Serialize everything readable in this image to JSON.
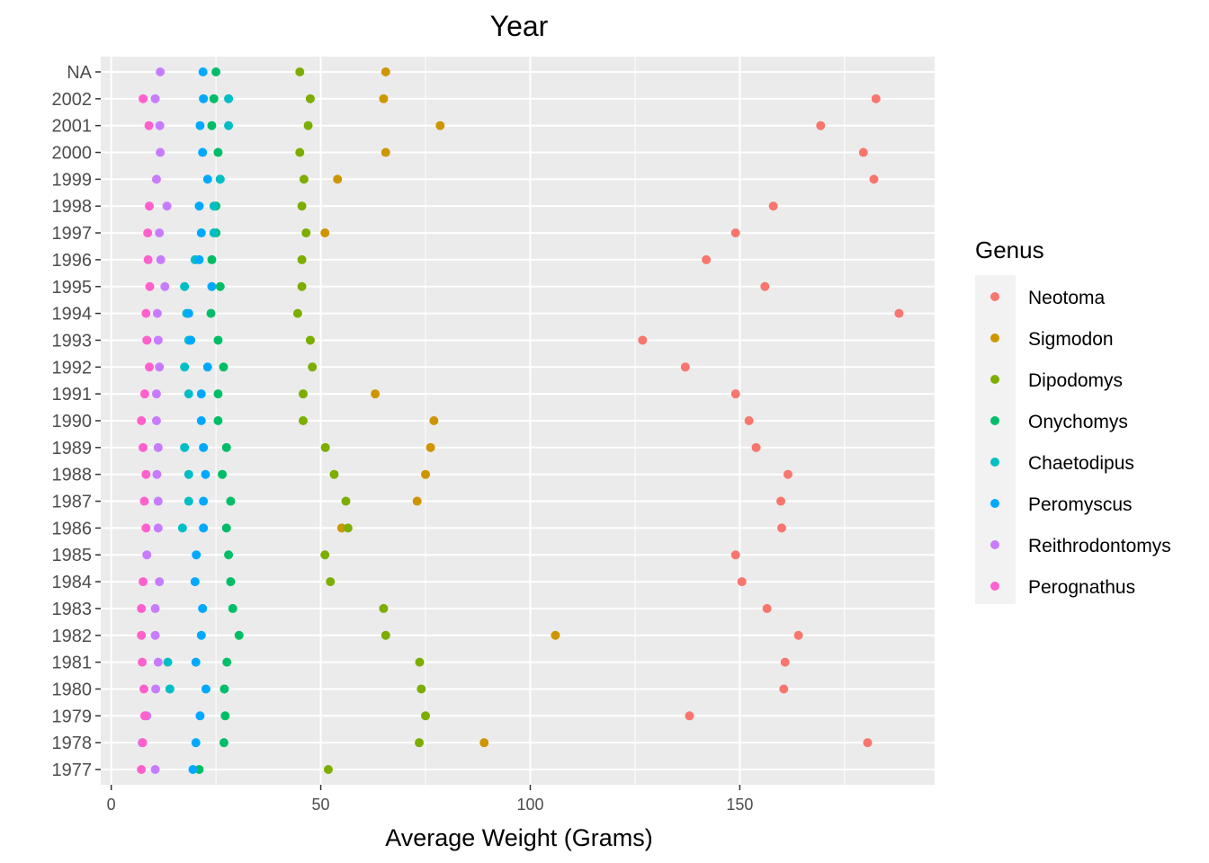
{
  "chart_data": {
    "type": "scatter",
    "title": "Year",
    "xlabel": "Average Weight (Grams)",
    "ylabel": "",
    "xlim": [
      -2.5,
      196.5
    ],
    "x_ticks": [
      0,
      50,
      100,
      150
    ],
    "categories": [
      "1977",
      "1978",
      "1979",
      "1980",
      "1981",
      "1982",
      "1983",
      "1984",
      "1985",
      "1986",
      "1987",
      "1988",
      "1989",
      "1990",
      "1991",
      "1992",
      "1993",
      "1994",
      "1995",
      "1996",
      "1997",
      "1998",
      "1999",
      "2000",
      "2001",
      "2002",
      "NA"
    ],
    "grid": true,
    "legend": {
      "title": "Genus",
      "position": "right",
      "entries": [
        "Neotoma",
        "Sigmodon",
        "Dipodomys",
        "Onychomys",
        "Chaetodipus",
        "Peromyscus",
        "Reithrodontomys",
        "Perognathus"
      ]
    },
    "series": [
      {
        "name": "Neotoma",
        "color": "#F8766D",
        "values": [
          null,
          180.5,
          138,
          160.5,
          160.8,
          164,
          156.5,
          150.5,
          149,
          160,
          159.8,
          161.5,
          153.9,
          152.2,
          149,
          137,
          126.8,
          188,
          156,
          142,
          149,
          158,
          182,
          179.5,
          169.3,
          182.5,
          null
        ]
      },
      {
        "name": "Sigmodon",
        "color": "#CD9600",
        "values": [
          null,
          89,
          null,
          null,
          null,
          106,
          null,
          null,
          null,
          55,
          73,
          75,
          76.2,
          77,
          63,
          null,
          null,
          null,
          null,
          null,
          51,
          null,
          54,
          65.5,
          78.5,
          65,
          65.5
        ]
      },
      {
        "name": "Dipodomys",
        "color": "#7CAE00",
        "values": [
          51.8,
          73.5,
          75,
          74,
          73.6,
          65.5,
          65,
          52.3,
          51,
          56.5,
          56,
          53.2,
          51.1,
          45.8,
          45.8,
          48,
          47.5,
          44.5,
          45.5,
          45.5,
          46.5,
          45.5,
          46,
          45,
          47,
          47.5,
          45
        ]
      },
      {
        "name": "Onychomys",
        "color": "#00BE67",
        "values": [
          21,
          26.9,
          27.2,
          27,
          27.6,
          30.5,
          29,
          28.5,
          28,
          27.5,
          28.5,
          26.5,
          27.5,
          25.5,
          25.5,
          26.8,
          25.5,
          23.8,
          26,
          24,
          25,
          25,
          26,
          25.5,
          24,
          24.5,
          25
        ]
      },
      {
        "name": "Chaetodipus",
        "color": "#00BFC4",
        "values": [
          null,
          null,
          null,
          14,
          13.5,
          null,
          null,
          null,
          null,
          17,
          18.5,
          18.5,
          17.5,
          null,
          18.5,
          17.5,
          18.5,
          18,
          17.5,
          20,
          24.5,
          24.5,
          26,
          null,
          28,
          28,
          null
        ]
      },
      {
        "name": "Peromyscus",
        "color": "#00A9FF",
        "values": [
          19.5,
          20.2,
          21.2,
          22.6,
          20.2,
          21.5,
          21.8,
          20,
          20.3,
          22,
          22,
          22.5,
          22,
          21.5,
          21.5,
          23,
          19,
          18.5,
          24,
          21,
          21.5,
          21,
          23,
          21.8,
          21.2,
          22,
          21.9
        ]
      },
      {
        "name": "Reithrodontomys",
        "color": "#C77CFF",
        "values": [
          10.5,
          7.4,
          8.5,
          10.6,
          11.2,
          10.5,
          10.5,
          11.5,
          8.5,
          11.2,
          11.2,
          10.9,
          11.2,
          10.8,
          10.8,
          11.5,
          11.2,
          11,
          12.8,
          11.8,
          11.5,
          13.3,
          10.8,
          11.7,
          11.6,
          10.5,
          11.7
        ]
      },
      {
        "name": "Perognathus",
        "color": "#FF61CC",
        "values": [
          7.2,
          7.5,
          8,
          7.8,
          7.4,
          7.2,
          7.2,
          7.6,
          null,
          8.3,
          7.9,
          8.3,
          7.6,
          7.2,
          8,
          9.1,
          8.5,
          8.3,
          9.2,
          8.8,
          8.7,
          9.1,
          null,
          null,
          9,
          7.6,
          null
        ]
      }
    ]
  }
}
